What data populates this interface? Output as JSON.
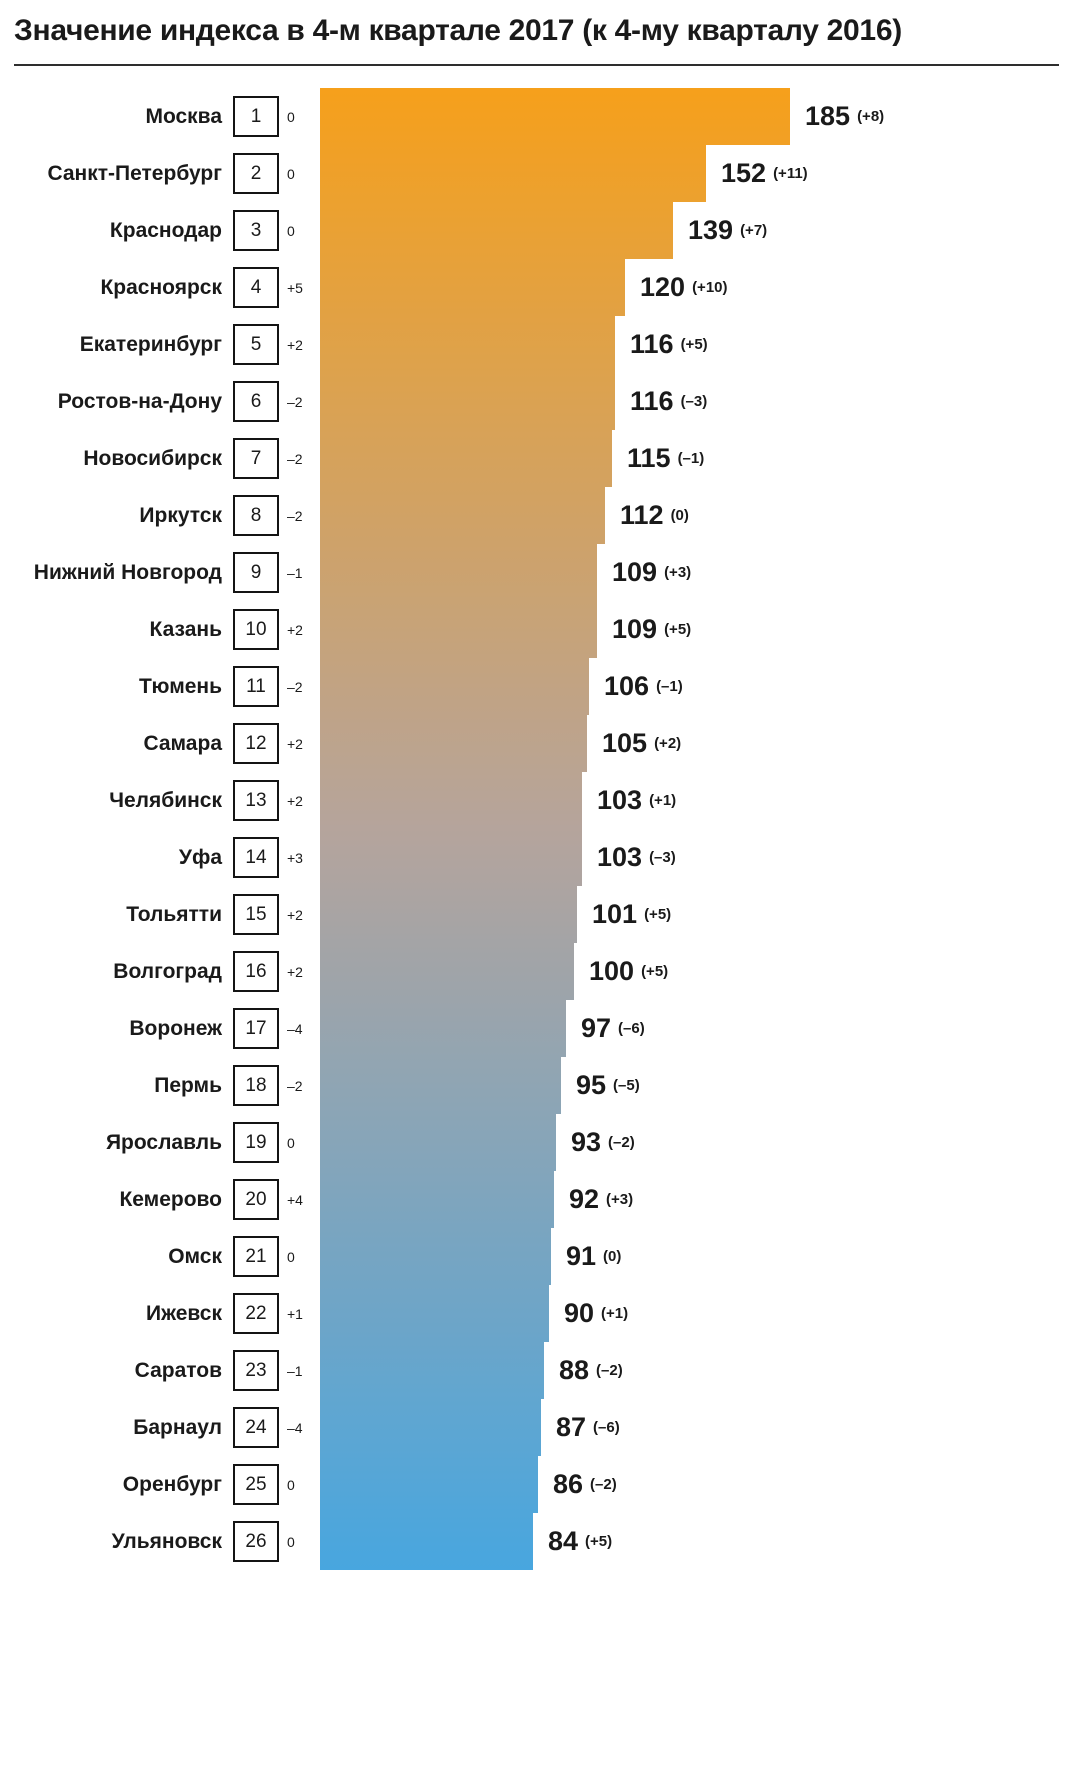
{
  "title": "Значение индекса в 4-м квартале 2017 (к 4-му кварталу 2016)",
  "colors": {
    "text": "#1a1a1a",
    "divider": "#2e2e2e",
    "rank_box_border": "#141414"
  },
  "chart_data": {
    "type": "bar",
    "orientation": "horizontal",
    "title": "Значение индекса в 4-м квартале 2017 (к 4-му кварталу 2016)",
    "max_value": 185,
    "bar_gradient": {
      "top": "#F6A01B",
      "middle": "#B5A49C",
      "bottom": "#48A6DF"
    },
    "rows": [
      {
        "city": "Москва",
        "rank": 1,
        "rank_change": "0",
        "value": 185,
        "value_change": "(+8)"
      },
      {
        "city": "Санкт-Петербург",
        "rank": 2,
        "rank_change": "0",
        "value": 152,
        "value_change": "(+11)"
      },
      {
        "city": "Краснодар",
        "rank": 3,
        "rank_change": "0",
        "value": 139,
        "value_change": "(+7)"
      },
      {
        "city": "Красноярск",
        "rank": 4,
        "rank_change": "+5",
        "value": 120,
        "value_change": "(+10)"
      },
      {
        "city": "Екатеринбург",
        "rank": 5,
        "rank_change": "+2",
        "value": 116,
        "value_change": "(+5)"
      },
      {
        "city": "Ростов-на-Дону",
        "rank": 6,
        "rank_change": "–2",
        "value": 116,
        "value_change": "(–3)"
      },
      {
        "city": "Новосибирск",
        "rank": 7,
        "rank_change": "–2",
        "value": 115,
        "value_change": "(–1)"
      },
      {
        "city": "Иркутск",
        "rank": 8,
        "rank_change": "–2",
        "value": 112,
        "value_change": "(0)"
      },
      {
        "city": "Нижний Новгород",
        "rank": 9,
        "rank_change": "–1",
        "value": 109,
        "value_change": "(+3)"
      },
      {
        "city": "Казань",
        "rank": 10,
        "rank_change": "+2",
        "value": 109,
        "value_change": "(+5)"
      },
      {
        "city": "Тюмень",
        "rank": 11,
        "rank_change": "–2",
        "value": 106,
        "value_change": "(–1)"
      },
      {
        "city": "Самара",
        "rank": 12,
        "rank_change": "+2",
        "value": 105,
        "value_change": "(+2)"
      },
      {
        "city": "Челябинск",
        "rank": 13,
        "rank_change": "+2",
        "value": 103,
        "value_change": "(+1)"
      },
      {
        "city": "Уфа",
        "rank": 14,
        "rank_change": "+3",
        "value": 103,
        "value_change": "(–3)"
      },
      {
        "city": "Тольятти",
        "rank": 15,
        "rank_change": "+2",
        "value": 101,
        "value_change": "(+5)"
      },
      {
        "city": "Волгоград",
        "rank": 16,
        "rank_change": "+2",
        "value": 100,
        "value_change": "(+5)"
      },
      {
        "city": "Воронеж",
        "rank": 17,
        "rank_change": "–4",
        "value": 97,
        "value_change": "(–6)"
      },
      {
        "city": "Пермь",
        "rank": 18,
        "rank_change": "–2",
        "value": 95,
        "value_change": "(–5)"
      },
      {
        "city": "Ярославль",
        "rank": 19,
        "rank_change": "0",
        "value": 93,
        "value_change": "(–2)"
      },
      {
        "city": "Кемерово",
        "rank": 20,
        "rank_change": "+4",
        "value": 92,
        "value_change": "(+3)"
      },
      {
        "city": "Омск",
        "rank": 21,
        "rank_change": "0",
        "value": 91,
        "value_change": "(0)"
      },
      {
        "city": "Ижевск",
        "rank": 22,
        "rank_change": "+1",
        "value": 90,
        "value_change": "(+1)"
      },
      {
        "city": "Саратов",
        "rank": 23,
        "rank_change": "–1",
        "value": 88,
        "value_change": "(–2)"
      },
      {
        "city": "Барнаул",
        "rank": 24,
        "rank_change": "–4",
        "value": 87,
        "value_change": "(–6)"
      },
      {
        "city": "Оренбург",
        "rank": 25,
        "rank_change": "0",
        "value": 86,
        "value_change": "(–2)"
      },
      {
        "city": "Ульяновск",
        "rank": 26,
        "rank_change": "0",
        "value": 84,
        "value_change": "(+5)"
      }
    ]
  }
}
